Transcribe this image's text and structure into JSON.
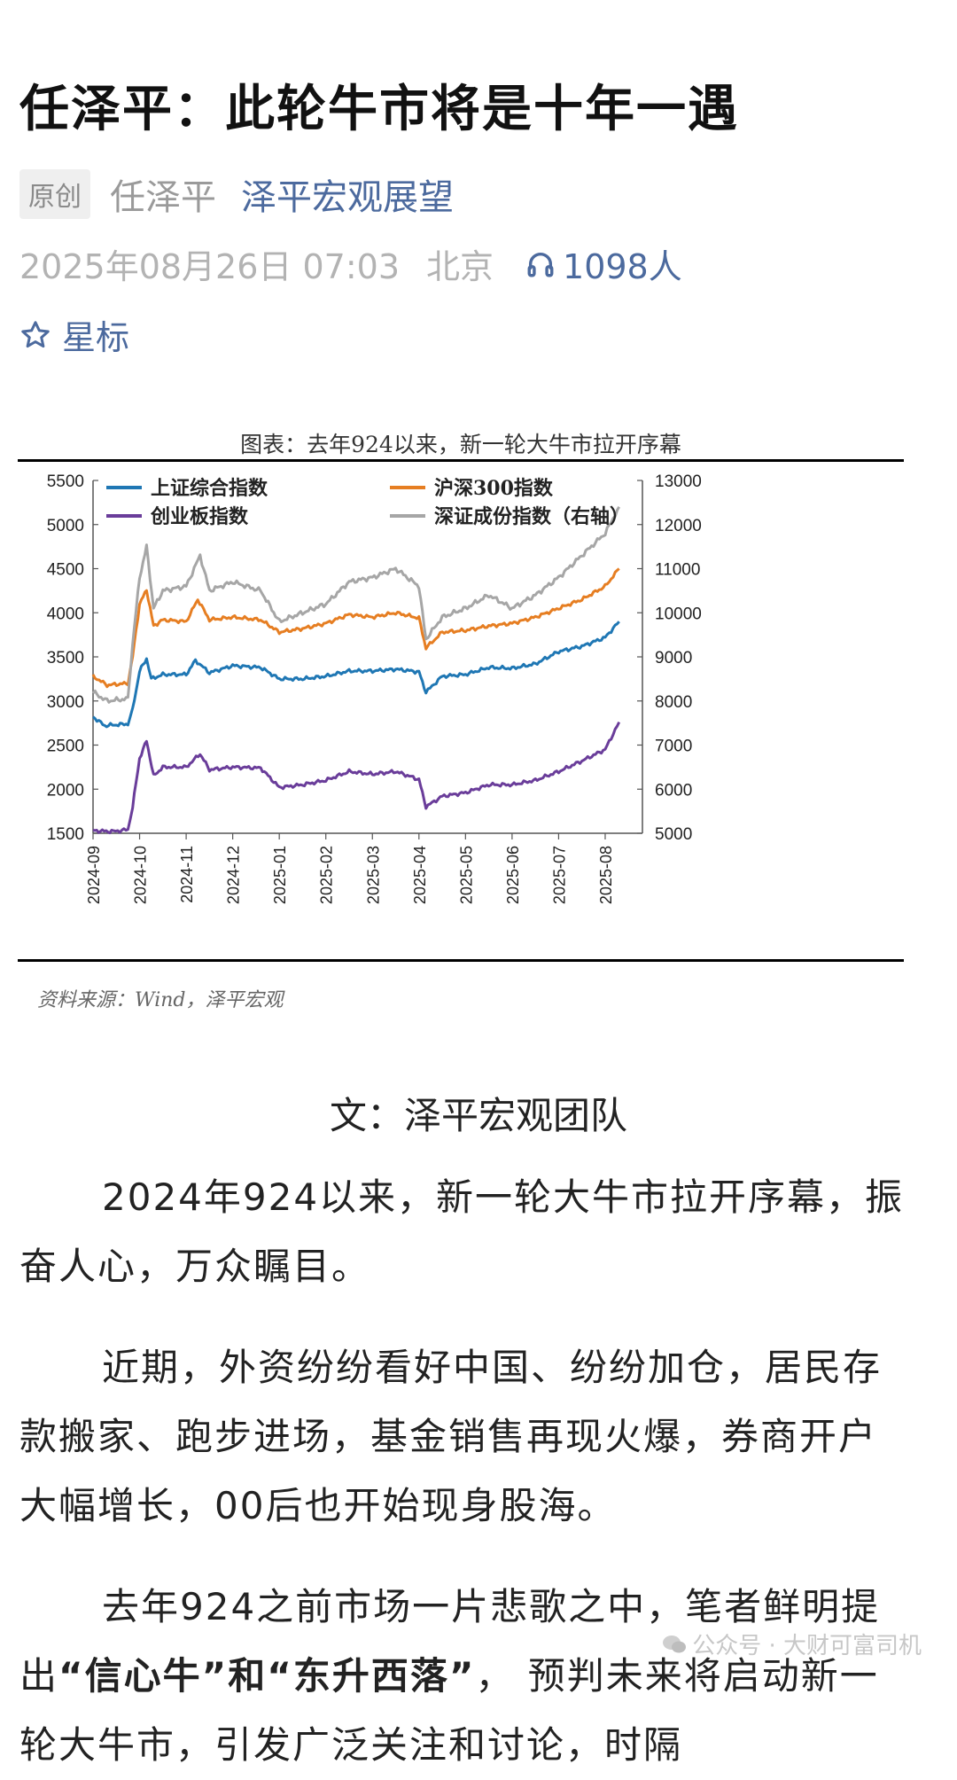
{
  "article": {
    "title": "任泽平：此轮牛市将是十年一遇",
    "badge": "原创",
    "author": "任泽平",
    "account": "泽平宏观展望",
    "datetime": "2025年08月26日 07:03",
    "location": "北京",
    "listeners": "1098人",
    "star_label": "星标"
  },
  "figure": {
    "caption": "图表：去年924以来，新一轮大牛市拉开序幕",
    "source": "资料来源：Wind，泽平宏观"
  },
  "chart_data": {
    "type": "line",
    "title": "图表：去年924以来，新一轮大牛市拉开序幕",
    "x_ticks": [
      "2024-09",
      "2024-10",
      "2024-11",
      "2024-12",
      "2025-01",
      "2025-02",
      "2025-03",
      "2025-04",
      "2025-05",
      "2025-06",
      "2025-07",
      "2025-08"
    ],
    "left_axis": {
      "ylim": [
        1500,
        5500
      ],
      "ticks": [
        1500,
        2000,
        2500,
        3000,
        3500,
        4000,
        4500,
        5000,
        5500
      ]
    },
    "right_axis": {
      "ylim": [
        5000,
        13000
      ],
      "ticks": [
        5000,
        6000,
        7000,
        8000,
        9000,
        10000,
        11000,
        12000,
        13000
      ]
    },
    "legend_position": "top",
    "series": [
      {
        "name": "上证综合指数",
        "axis": "left",
        "color": "#1f77b4",
        "values": [
          [
            0,
            2820
          ],
          [
            0.25,
            2720
          ],
          [
            0.75,
            2740
          ],
          [
            0.85,
            2900
          ],
          [
            1.0,
            3340
          ],
          [
            1.15,
            3480
          ],
          [
            1.25,
            3250
          ],
          [
            1.5,
            3300
          ],
          [
            2.0,
            3300
          ],
          [
            2.2,
            3460
          ],
          [
            2.5,
            3320
          ],
          [
            3.0,
            3400
          ],
          [
            3.6,
            3380
          ],
          [
            4.0,
            3250
          ],
          [
            4.5,
            3250
          ],
          [
            5.0,
            3280
          ],
          [
            5.5,
            3340
          ],
          [
            6.0,
            3340
          ],
          [
            6.5,
            3360
          ],
          [
            7.0,
            3330
          ],
          [
            7.15,
            3100
          ],
          [
            7.5,
            3280
          ],
          [
            8.0,
            3300
          ],
          [
            8.5,
            3380
          ],
          [
            9.0,
            3370
          ],
          [
            9.5,
            3420
          ],
          [
            10.0,
            3560
          ],
          [
            10.5,
            3620
          ],
          [
            11.0,
            3720
          ],
          [
            11.3,
            3900
          ]
        ]
      },
      {
        "name": "沪深300指数",
        "axis": "left",
        "color": "#e67e22",
        "values": [
          [
            0,
            3280
          ],
          [
            0.3,
            3180
          ],
          [
            0.75,
            3200
          ],
          [
            0.85,
            3500
          ],
          [
            1.0,
            4100
          ],
          [
            1.15,
            4260
          ],
          [
            1.3,
            3850
          ],
          [
            1.5,
            3920
          ],
          [
            2.0,
            3900
          ],
          [
            2.25,
            4150
          ],
          [
            2.5,
            3920
          ],
          [
            3.0,
            3950
          ],
          [
            3.6,
            3920
          ],
          [
            4.0,
            3780
          ],
          [
            4.5,
            3820
          ],
          [
            5.0,
            3880
          ],
          [
            5.5,
            3980
          ],
          [
            6.0,
            3950
          ],
          [
            6.5,
            4000
          ],
          [
            7.0,
            3940
          ],
          [
            7.15,
            3600
          ],
          [
            7.5,
            3780
          ],
          [
            8.0,
            3800
          ],
          [
            8.5,
            3850
          ],
          [
            9.0,
            3880
          ],
          [
            9.5,
            3950
          ],
          [
            10.0,
            4050
          ],
          [
            10.5,
            4150
          ],
          [
            11.0,
            4300
          ],
          [
            11.3,
            4500
          ]
        ]
      },
      {
        "name": "创业板指数",
        "axis": "left",
        "color": "#6a3d9a",
        "values": [
          [
            0,
            1530
          ],
          [
            0.4,
            1520
          ],
          [
            0.75,
            1540
          ],
          [
            0.85,
            1800
          ],
          [
            1.0,
            2350
          ],
          [
            1.15,
            2550
          ],
          [
            1.3,
            2150
          ],
          [
            1.5,
            2250
          ],
          [
            2.0,
            2250
          ],
          [
            2.3,
            2400
          ],
          [
            2.5,
            2220
          ],
          [
            3.0,
            2250
          ],
          [
            3.6,
            2240
          ],
          [
            4.0,
            2020
          ],
          [
            4.5,
            2050
          ],
          [
            5.0,
            2100
          ],
          [
            5.5,
            2200
          ],
          [
            6.0,
            2170
          ],
          [
            6.5,
            2200
          ],
          [
            7.0,
            2110
          ],
          [
            7.15,
            1800
          ],
          [
            7.5,
            1920
          ],
          [
            8.0,
            1960
          ],
          [
            8.5,
            2050
          ],
          [
            9.0,
            2050
          ],
          [
            9.5,
            2100
          ],
          [
            10.0,
            2200
          ],
          [
            10.5,
            2320
          ],
          [
            11.0,
            2450
          ],
          [
            11.3,
            2760
          ]
        ]
      },
      {
        "name": "深证成份指数（右轴）",
        "axis": "right",
        "color": "#a6a6a6",
        "values": [
          [
            0,
            8200
          ],
          [
            0.3,
            8000
          ],
          [
            0.75,
            8050
          ],
          [
            0.85,
            9300
          ],
          [
            1.0,
            10800
          ],
          [
            1.15,
            11500
          ],
          [
            1.3,
            10100
          ],
          [
            1.5,
            10500
          ],
          [
            2.0,
            10600
          ],
          [
            2.3,
            11300
          ],
          [
            2.5,
            10500
          ],
          [
            3.0,
            10700
          ],
          [
            3.6,
            10500
          ],
          [
            4.0,
            9800
          ],
          [
            4.5,
            10000
          ],
          [
            5.0,
            10200
          ],
          [
            5.5,
            10700
          ],
          [
            6.0,
            10800
          ],
          [
            6.5,
            11000
          ],
          [
            7.0,
            10600
          ],
          [
            7.15,
            9400
          ],
          [
            7.5,
            9900
          ],
          [
            8.0,
            10100
          ],
          [
            8.5,
            10400
          ],
          [
            9.0,
            10100
          ],
          [
            9.5,
            10400
          ],
          [
            10.0,
            10800
          ],
          [
            10.5,
            11300
          ],
          [
            11.0,
            11800
          ],
          [
            11.3,
            12400
          ]
        ]
      }
    ]
  },
  "body": {
    "byline": "文：泽平宏观团队",
    "p1": "2024年924以来，新一轮大牛市拉开序幕，振奋人心，万众瞩目。",
    "p2": "近期，外资纷纷看好中国、纷纷加仓，居民存款搬家、跑步进场，基金销售再现火爆，券商开户大幅增长，00后也开始现身股海。",
    "p3_a": "去年924之前市场一片悲歌之中，笔者鲜明提出",
    "p3_b": "“信心牛”和“东升西落”",
    "p3_c": "， 预判未来将启动新一轮大牛市，引发广泛关注和讨论，时隔",
    "watermark": "公众号 · 大财可富司机"
  },
  "colors": {
    "link": "#4c6a9e",
    "muted": "#b3b3b3"
  }
}
